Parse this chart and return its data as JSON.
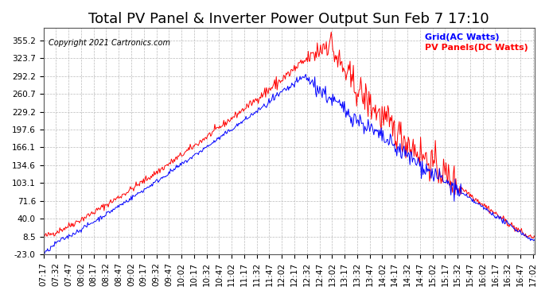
{
  "title": "Total PV Panel & Inverter Power Output Sun Feb 7 17:10",
  "copyright_text": "Copyright 2021 Cartronics.com",
  "legend_ac": "Grid(AC Watts)",
  "legend_dc": "PV Panels(DC Watts)",
  "color_ac": "blue",
  "color_dc": "red",
  "yticks": [
    355.2,
    323.7,
    292.2,
    260.7,
    229.2,
    197.6,
    166.1,
    134.6,
    103.1,
    71.6,
    40.0,
    8.5,
    -23.0
  ],
  "ylim": [
    -23.0,
    378.0
  ],
  "background_color": "#ffffff",
  "grid_color": "#bbbbbb",
  "title_fontsize": 13,
  "label_fontsize": 9,
  "tick_fontsize": 7.5
}
